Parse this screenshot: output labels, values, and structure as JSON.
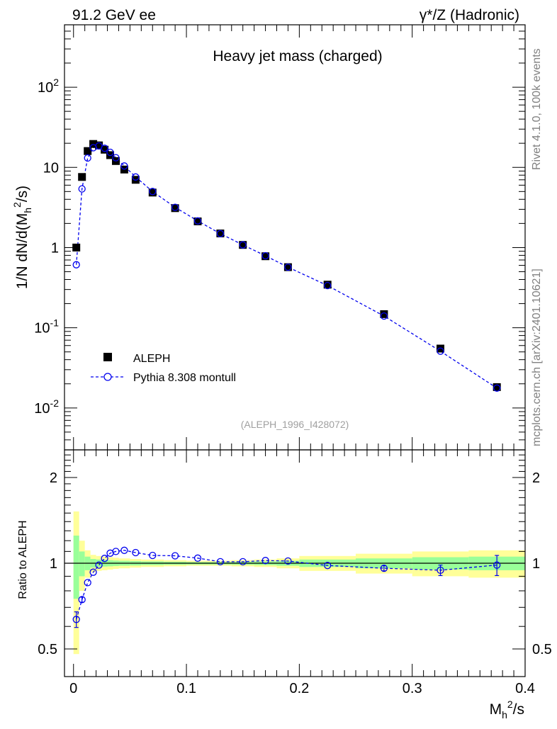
{
  "header": {
    "left": "91.2 GeV ee",
    "right": "γ*/Z (Hadronic)"
  },
  "side_labels": {
    "rivet": "Rivet 4.1.0,  100k events",
    "mcplots": "mcplots.cern.ch [arXiv:2401.10621]"
  },
  "chart_data": [
    {
      "type": "scatter",
      "title": "Heavy jet mass (charged)",
      "watermark": "(ALEPH_1996_I428072)",
      "ylabel": "1/N  dN/d(M_h^2/s)",
      "yscale": "log",
      "ylim": [
        0.003,
        600
      ],
      "xlim": [
        -0.008,
        0.4
      ],
      "y_major_ticks": [
        {
          "value": 0.01,
          "label": "10^-2"
        },
        {
          "value": 0.1,
          "label": "10^-1"
        },
        {
          "value": 1,
          "label": "1"
        },
        {
          "value": 10,
          "label": "10"
        },
        {
          "value": 100,
          "label": "10^2"
        }
      ],
      "legend": [
        {
          "name": "ALEPH",
          "marker": "filled-square",
          "color": "#000000"
        },
        {
          "name": "Pythia 8.308 montull",
          "marker": "open-circle-dashed",
          "color": "#0000ee"
        }
      ],
      "series": [
        {
          "name": "ALEPH",
          "x": [
            0.0025,
            0.0075,
            0.0125,
            0.0175,
            0.0225,
            0.0275,
            0.0325,
            0.0375,
            0.045,
            0.055,
            0.07,
            0.09,
            0.11,
            0.13,
            0.15,
            0.17,
            0.19,
            0.225,
            0.275,
            0.325,
            0.375
          ],
          "y": [
            1.0,
            7.6,
            16.0,
            19.6,
            18.8,
            16.6,
            14.2,
            12.0,
            9.4,
            7.0,
            4.85,
            3.1,
            2.12,
            1.5,
            1.08,
            0.78,
            0.57,
            0.345,
            0.148,
            0.055,
            0.0182
          ]
        },
        {
          "name": "Pythia 8.308 montull",
          "x": [
            0.0025,
            0.0075,
            0.0125,
            0.0175,
            0.0225,
            0.0275,
            0.0325,
            0.0375,
            0.045,
            0.055,
            0.07,
            0.09,
            0.11,
            0.13,
            0.15,
            0.17,
            0.19,
            0.225,
            0.275,
            0.325,
            0.375
          ],
          "y": [
            0.61,
            5.4,
            13.1,
            17.6,
            18.5,
            17.3,
            15.4,
            13.2,
            10.4,
            7.6,
            5.0,
            3.18,
            2.15,
            1.49,
            1.08,
            0.79,
            0.57,
            0.336,
            0.14,
            0.051,
            0.0177
          ]
        }
      ]
    },
    {
      "type": "scatter",
      "title": "",
      "xlabel": "M_h^2/s",
      "ylabel": "Ratio to ALEPH",
      "yscale": "log",
      "ylim": [
        0.4,
        2.5
      ],
      "xlim": [
        -0.008,
        0.4
      ],
      "y_major_ticks": [
        0.5,
        1,
        2
      ],
      "x_major_ticks": [
        {
          "value": 0,
          "label": "0"
        },
        {
          "value": 0.1,
          "label": "0.1"
        },
        {
          "value": 0.2,
          "label": "0.2"
        },
        {
          "value": 0.3,
          "label": "0.3"
        },
        {
          "value": 0.4,
          "label": "0.4"
        }
      ],
      "bands": {
        "edges": [
          0,
          0.005,
          0.01,
          0.015,
          0.02,
          0.025,
          0.03,
          0.035,
          0.04,
          0.05,
          0.06,
          0.08,
          0.1,
          0.12,
          0.14,
          0.16,
          0.18,
          0.2,
          0.25,
          0.3,
          0.35,
          0.4
        ],
        "yellow_halfwidth": [
          0.52,
          0.2,
          0.11,
          0.07,
          0.06,
          0.055,
          0.05,
          0.045,
          0.04,
          0.035,
          0.03,
          0.025,
          0.02,
          0.02,
          0.025,
          0.03,
          0.04,
          0.06,
          0.08,
          0.1,
          0.11
        ],
        "green_halfwidth": [
          0.25,
          0.1,
          0.055,
          0.035,
          0.03,
          0.027,
          0.025,
          0.022,
          0.02,
          0.018,
          0.015,
          0.012,
          0.01,
          0.01,
          0.012,
          0.015,
          0.02,
          0.03,
          0.04,
          0.05,
          0.055
        ]
      },
      "series": [
        {
          "name": "Pythia 8.308 montull / ALEPH",
          "x": [
            0.0025,
            0.0075,
            0.0125,
            0.0175,
            0.0225,
            0.0275,
            0.0325,
            0.0375,
            0.045,
            0.055,
            0.07,
            0.09,
            0.11,
            0.13,
            0.15,
            0.17,
            0.19,
            0.225,
            0.275,
            0.325,
            0.375
          ],
          "y": [
            0.635,
            0.745,
            0.855,
            0.93,
            0.985,
            1.04,
            1.085,
            1.1,
            1.11,
            1.09,
            1.065,
            1.062,
            1.042,
            1.012,
            1.012,
            1.022,
            1.018,
            0.982,
            0.96,
            0.945,
            0.985
          ],
          "err": [
            0.04,
            0.015,
            0.01,
            0.008,
            0.006,
            0.006,
            0.006,
            0.006,
            0.005,
            0.005,
            0.005,
            0.005,
            0.006,
            0.006,
            0.007,
            0.008,
            0.01,
            0.012,
            0.02,
            0.04,
            0.08
          ]
        }
      ]
    }
  ]
}
